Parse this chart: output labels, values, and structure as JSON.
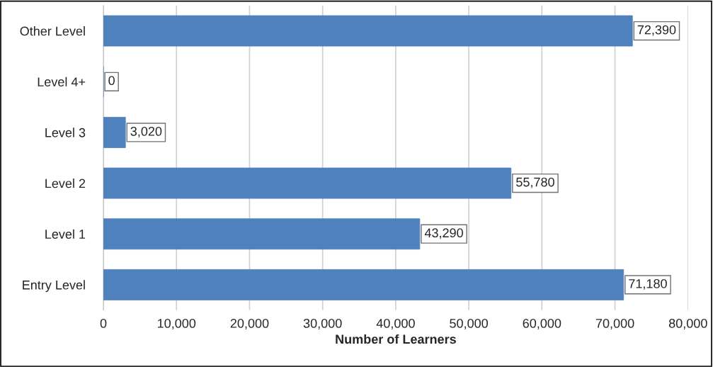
{
  "chart_data": {
    "type": "bar",
    "orientation": "horizontal",
    "xlabel": "Number of Learners",
    "categories": [
      "Other Level",
      "Level 4+",
      "Level 3",
      "Level 2",
      "Level 1",
      "Entry Level"
    ],
    "values": [
      72390,
      0,
      3020,
      55780,
      43290,
      71180
    ],
    "value_labels": [
      "72,390",
      "0",
      "3,020",
      "55,780",
      "43,290",
      "71,180"
    ],
    "color": "#4f81bd",
    "xlim": [
      0,
      80000
    ],
    "xticks": [
      0,
      {
        "value": 10000,
        "label": "10,000"
      },
      {
        "value": 20000,
        "label": "20,000"
      },
      {
        "value": 30000,
        "label": "30,000"
      },
      {
        "value": 40000,
        "label": "40,000"
      },
      {
        "value": 50000,
        "label": "50,000"
      },
      {
        "value": 60000,
        "label": "60,000"
      },
      {
        "value": 70000,
        "label": "70,000"
      },
      {
        "value": 80000,
        "label": "80,000"
      }
    ],
    "grid": "x",
    "legend": false
  }
}
